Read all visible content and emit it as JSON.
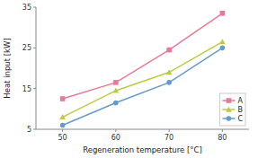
{
  "chart_data": {
    "type": "line",
    "x": [
      50,
      60,
      70,
      80
    ],
    "series": [
      {
        "name": "A",
        "color": "#E8799A",
        "marker": "square",
        "values": [
          12.5,
          16.5,
          24.5,
          33.5
        ]
      },
      {
        "name": "B",
        "color": "#BBCC44",
        "marker": "triangle",
        "values": [
          8.0,
          14.5,
          19.0,
          26.5
        ]
      },
      {
        "name": "C",
        "color": "#6699CC",
        "marker": "circle",
        "values": [
          6.0,
          11.5,
          16.5,
          25.0
        ]
      }
    ],
    "xlabel": "Regeneration temperature [°C]",
    "ylabel": "Heat input [kW]",
    "xlim": [
      45,
      85
    ],
    "ylim": [
      5,
      35
    ],
    "xticks": [
      50,
      60,
      70,
      80
    ],
    "yticks": [
      5,
      15,
      25,
      35
    ],
    "legend": "lower right"
  }
}
